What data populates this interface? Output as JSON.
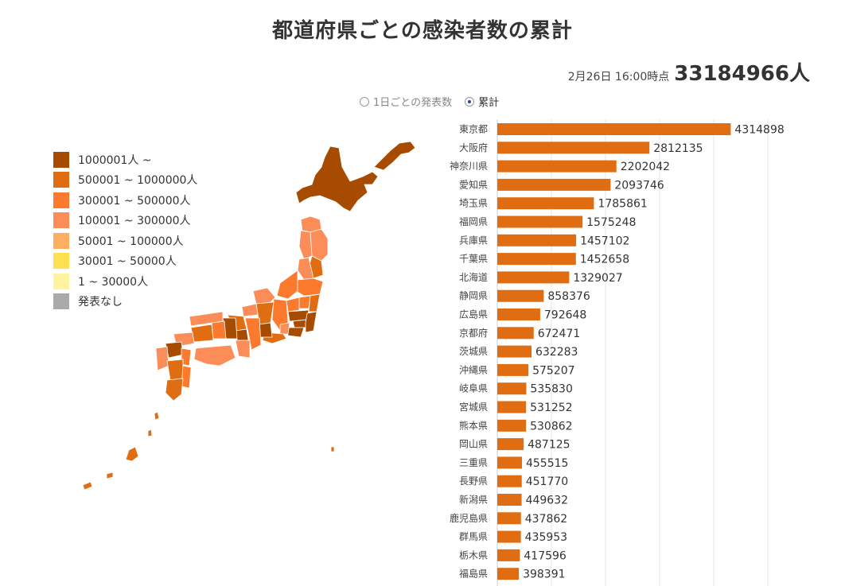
{
  "title": "都道府県ごとの感染者数の累計",
  "asof": {
    "label": "2月26日 16:00時点",
    "total": "33184966人"
  },
  "toggle": {
    "options": [
      "1日ごとの発表数",
      "累計"
    ],
    "selected": 1
  },
  "legend": [
    {
      "label": "1000001人 ~",
      "color": "#a64b00"
    },
    {
      "label": "500001 ~ 1000000人",
      "color": "#e06d12"
    },
    {
      "label": "300001 ~ 500000人",
      "color": "#fb7a2e"
    },
    {
      "label": "100001 ~ 300000人",
      "color": "#fc8d59"
    },
    {
      "label": "50001 ~ 100000人",
      "color": "#fdae61"
    },
    {
      "label": "30001 ~ 50000人",
      "color": "#fee050"
    },
    {
      "label": "1 ~ 30000人",
      "color": "#fff3a0"
    },
    {
      "label": "発表なし",
      "color": "#aaaaaa"
    }
  ],
  "map_colors": {
    "dark": "#a64b00",
    "mid": "#e06d12",
    "orange": "#fb7a2e",
    "light": "#fc8d59"
  },
  "chart_data": {
    "type": "bar",
    "orientation": "horizontal",
    "bar_color": "#e06d12",
    "title": "",
    "xlim": [
      0,
      5000000
    ],
    "grid": true,
    "categories": [
      "東京都",
      "大阪府",
      "神奈川県",
      "愛知県",
      "埼玉県",
      "福岡県",
      "兵庫県",
      "千葉県",
      "北海道",
      "静岡県",
      "広島県",
      "京都府",
      "茨城県",
      "沖縄県",
      "岐阜県",
      "宮城県",
      "熊本県",
      "岡山県",
      "三重県",
      "長野県",
      "新潟県",
      "鹿児島県",
      "群馬県",
      "栃木県",
      "福島県"
    ],
    "values": [
      4314898,
      2812135,
      2202042,
      2093746,
      1785861,
      1575248,
      1457102,
      1452658,
      1329027,
      858376,
      792648,
      672471,
      632283,
      575207,
      535830,
      531252,
      530862,
      487125,
      455515,
      451770,
      449632,
      437862,
      435953,
      417596,
      398391
    ]
  }
}
